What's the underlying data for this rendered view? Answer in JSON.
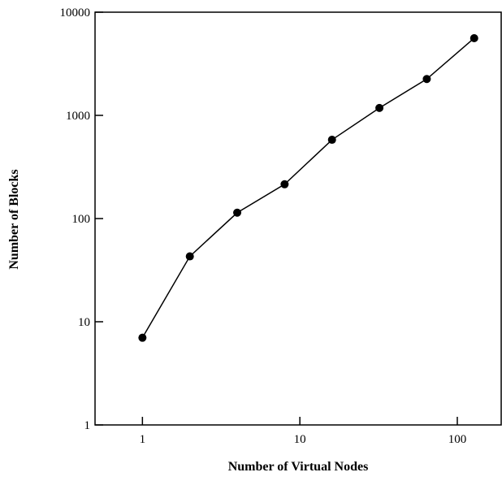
{
  "chart_data": {
    "type": "line",
    "x_label": "Number of Virtual Nodes",
    "y_label": "Number of Blocks",
    "x": [
      1,
      2,
      4,
      8,
      16,
      32,
      64,
      128
    ],
    "series": [
      {
        "name": "Blocks",
        "color": "#000000",
        "values": [
          7,
          43,
          114,
          215,
          580,
          1180,
          2250,
          5600
        ]
      }
    ],
    "xlim": [
      0.5,
      190
    ],
    "ylim": [
      1,
      10000
    ],
    "xscale": "log",
    "yscale": "log",
    "xticks": [
      1,
      10,
      100
    ],
    "yticks": [
      1,
      10,
      100,
      1000,
      10000
    ]
  }
}
